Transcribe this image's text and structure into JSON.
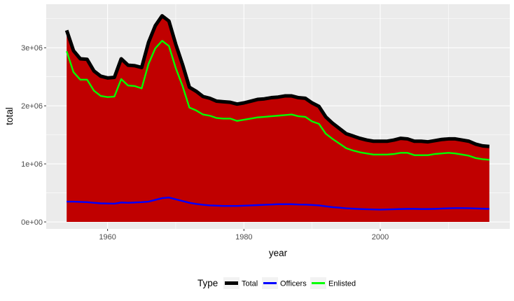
{
  "chart_data": {
    "type": "area",
    "xlabel": "year",
    "ylabel": "total",
    "xlim": [
      1951,
      2019
    ],
    "ylim": [
      -120000,
      3750000
    ],
    "x_ticks": [
      1960,
      1980,
      2000
    ],
    "x_tick_labels": [
      "1960",
      "1980",
      "2000"
    ],
    "y_ticks": [
      0,
      1000000,
      2000000,
      3000000
    ],
    "y_tick_labels": [
      "0e+00",
      "1e+06",
      "2e+06",
      "3e+06"
    ],
    "grid": true,
    "legend": {
      "title": "Type",
      "placement": "bottom",
      "entries": [
        "Total",
        "Officers",
        "Enlisted"
      ]
    },
    "area_fill_color": "#c00000",
    "x": [
      1954,
      1955,
      1956,
      1957,
      1958,
      1959,
      1960,
      1961,
      1962,
      1963,
      1964,
      1965,
      1966,
      1967,
      1968,
      1969,
      1970,
      1971,
      1972,
      1973,
      1974,
      1975,
      1976,
      1977,
      1978,
      1979,
      1980,
      1981,
      1982,
      1983,
      1984,
      1985,
      1986,
      1987,
      1988,
      1989,
      1990,
      1991,
      1992,
      1993,
      1994,
      1995,
      1996,
      1997,
      1998,
      1999,
      2000,
      2001,
      2002,
      2003,
      2004,
      2005,
      2006,
      2007,
      2008,
      2009,
      2010,
      2011,
      2012,
      2013,
      2014,
      2015,
      2016
    ],
    "series": [
      {
        "name": "Total",
        "color": "#000000",
        "values": [
          3300000,
          2950000,
          2810000,
          2800000,
          2600000,
          2510000,
          2480000,
          2490000,
          2810000,
          2700000,
          2690000,
          2660000,
          3090000,
          3380000,
          3550000,
          3460000,
          3060000,
          2710000,
          2320000,
          2250000,
          2160000,
          2130000,
          2080000,
          2070000,
          2060000,
          2030000,
          2050000,
          2080000,
          2110000,
          2120000,
          2140000,
          2150000,
          2170000,
          2170000,
          2140000,
          2130000,
          2050000,
          1990000,
          1810000,
          1700000,
          1610000,
          1520000,
          1480000,
          1440000,
          1410000,
          1390000,
          1390000,
          1390000,
          1410000,
          1440000,
          1430000,
          1390000,
          1390000,
          1380000,
          1400000,
          1420000,
          1430000,
          1430000,
          1410000,
          1390000,
          1340000,
          1310000,
          1300000
        ]
      },
      {
        "name": "Officers",
        "color": "#0000ff",
        "values": [
          350000,
          350000,
          345000,
          340000,
          330000,
          320000,
          318000,
          315000,
          335000,
          330000,
          335000,
          340000,
          350000,
          380000,
          410000,
          420000,
          390000,
          360000,
          330000,
          310000,
          295000,
          285000,
          280000,
          275000,
          275000,
          275000,
          280000,
          285000,
          290000,
          295000,
          300000,
          305000,
          305000,
          305000,
          300000,
          298000,
          292000,
          285000,
          270000,
          255000,
          245000,
          235000,
          228000,
          222000,
          218000,
          215000,
          212000,
          215000,
          218000,
          222000,
          225000,
          225000,
          222000,
          222000,
          225000,
          230000,
          235000,
          238000,
          238000,
          236000,
          232000,
          228000,
          225000
        ]
      },
      {
        "name": "Enlisted",
        "color": "#00ff00",
        "values": [
          2940000,
          2580000,
          2450000,
          2450000,
          2260000,
          2170000,
          2150000,
          2160000,
          2460000,
          2350000,
          2340000,
          2300000,
          2720000,
          2990000,
          3120000,
          3030000,
          2650000,
          2340000,
          1970000,
          1920000,
          1850000,
          1830000,
          1790000,
          1780000,
          1780000,
          1740000,
          1760000,
          1780000,
          1800000,
          1810000,
          1820000,
          1830000,
          1840000,
          1850000,
          1820000,
          1810000,
          1730000,
          1690000,
          1520000,
          1430000,
          1350000,
          1270000,
          1230000,
          1200000,
          1180000,
          1160000,
          1160000,
          1160000,
          1170000,
          1190000,
          1190000,
          1150000,
          1150000,
          1150000,
          1170000,
          1180000,
          1190000,
          1180000,
          1160000,
          1140000,
          1100000,
          1080000,
          1070000
        ]
      }
    ]
  }
}
